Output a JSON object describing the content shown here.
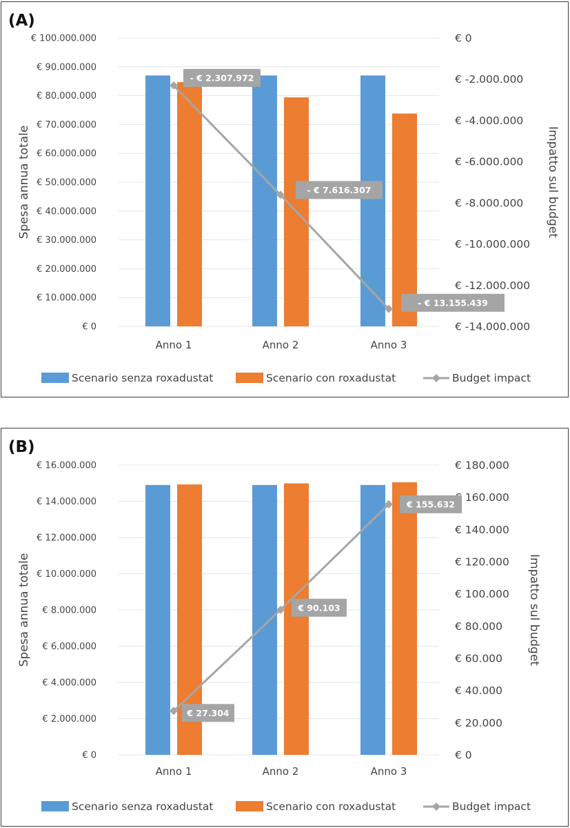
{
  "colors": {
    "series_senza": "#5b9bd5",
    "series_con": "#ed7d31",
    "budget_line": "#a5a5a5",
    "label_box": "#a5a5a5",
    "grid": "#e4e4e4"
  },
  "chart_data": [
    {
      "panel_label": "(A)",
      "type": "bar",
      "categories": [
        "Anno 1",
        "Anno 2",
        "Anno 3"
      ],
      "series": [
        {
          "name": "Scenario senza roxadustat",
          "values": [
            87000000,
            87000000,
            87000000
          ]
        },
        {
          "name": "Scenario con roxadustat",
          "values": [
            84700000,
            79400000,
            73800000
          ]
        }
      ],
      "line_series": {
        "name": "Budget impact",
        "values": [
          -2307972,
          -7616307,
          -13155439
        ]
      },
      "data_labels": [
        "- € 2.307.972",
        "- € 7.616.307",
        "- € 13.155.439"
      ],
      "ylabel": "Spesa annua totale",
      "y2label": "Impatto sul budget",
      "ylim": [
        0,
        100000000
      ],
      "y2lim": [
        -14000000,
        0
      ],
      "y_ticks": [
        "€ 0",
        "€ 10.000.000",
        "€ 20.000.000",
        "€ 30.000.000",
        "€ 40.000.000",
        "€ 50.000.000",
        "€ 60.000.000",
        "€ 70.000.000",
        "€ 80.000.000",
        "€ 90.000.000",
        "€ 100.000.000"
      ],
      "y2_ticks": [
        "€ 0",
        "€ -2.000.000",
        "€ -4.000.000",
        "€ -6.000.000",
        "€ -8.000.000",
        "€ -10.000.000",
        "€ -12.000.000",
        "€ -14.000.000"
      ],
      "legend": [
        "Scenario senza roxadustat",
        "Scenario con roxadustat",
        "Budget impact"
      ],
      "legend_position": "bottom",
      "grid": true
    },
    {
      "panel_label": "(B)",
      "type": "bar",
      "categories": [
        "Anno 1",
        "Anno 2",
        "Anno 3"
      ],
      "series": [
        {
          "name": "Scenario senza roxadustat",
          "values": [
            14900000,
            14900000,
            14900000
          ]
        },
        {
          "name": "Scenario con roxadustat",
          "values": [
            14930000,
            14990000,
            15050000
          ]
        }
      ],
      "line_series": {
        "name": "Budget impact",
        "values": [
          27304,
          90103,
          155632
        ]
      },
      "data_labels": [
        "€ 27.304",
        "€ 90.103",
        "€ 155.632"
      ],
      "ylabel": "Spesa annua totale",
      "y2label": "Impatto sul budget",
      "ylim": [
        0,
        16000000
      ],
      "y2lim": [
        0,
        180000
      ],
      "y_ticks": [
        "€ 0",
        "€ 2.000.000",
        "€ 4.000.000",
        "€ 6.000.000",
        "€ 8.000.000",
        "€ 10.000.000",
        "€ 12.000.000",
        "€ 14.000.000",
        "€ 16.000.000"
      ],
      "y2_ticks": [
        "€ 0",
        "€ 20.000",
        "€ 40.000",
        "€ 60.000",
        "€ 80.000",
        "€ 100.000",
        "€ 120.000",
        "€ 140.000",
        "€ 160.000",
        "€ 180.000"
      ],
      "legend": [
        "Scenario senza roxadustat",
        "Scenario con roxadustat",
        "Budget impact"
      ],
      "legend_position": "bottom",
      "grid": true
    }
  ]
}
